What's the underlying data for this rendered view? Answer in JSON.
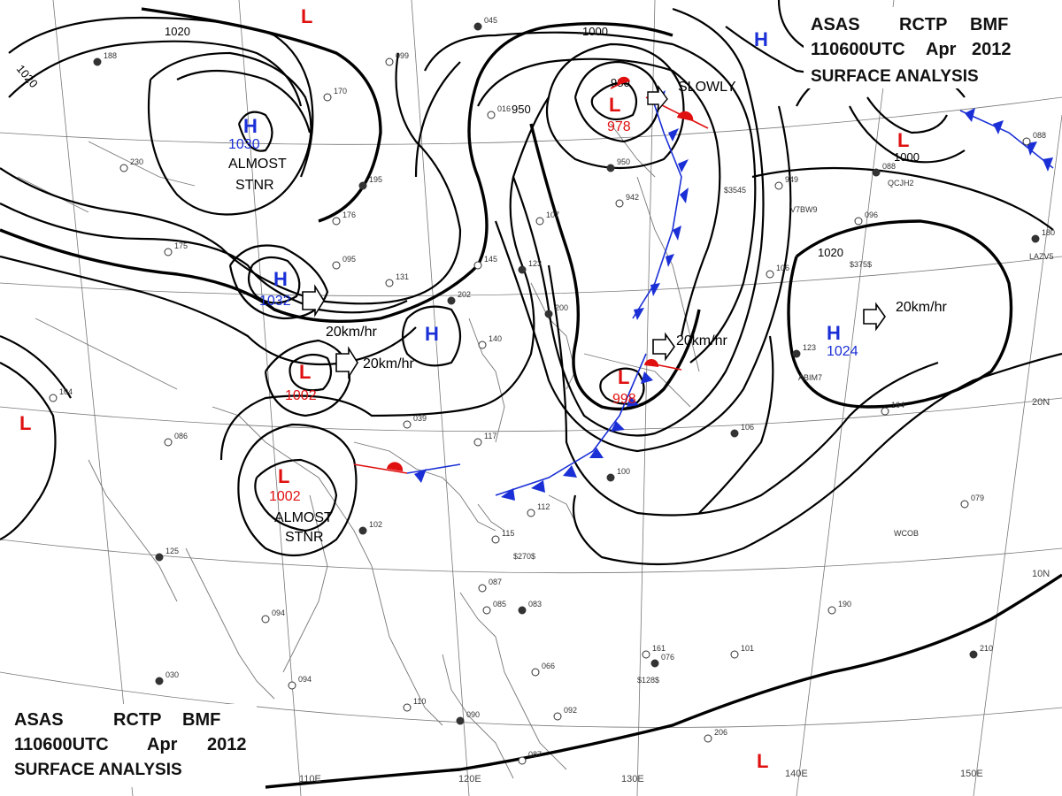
{
  "header_top": {
    "line1": [
      "ASAS",
      "RCTP",
      "BMF"
    ],
    "line2": [
      "110600UTC",
      "Apr",
      "2012"
    ],
    "line3": "SURFACE ANALYSIS"
  },
  "header_bottom": {
    "line1": [
      "ASAS",
      "RCTP",
      "BMF"
    ],
    "line2": [
      "110600UTC",
      "Apr",
      "2012"
    ],
    "line3": "SURFACE ANALYSIS"
  },
  "longitude_labels": [
    "110E",
    "120E",
    "130E",
    "140E",
    "150E"
  ],
  "latitude_labels": [
    "20N",
    "10N"
  ],
  "pressure_centers": [
    {
      "type": "H",
      "value": "1030",
      "note": "ALMOST STNR"
    },
    {
      "type": "H",
      "value": "1032",
      "note": ""
    },
    {
      "type": "H",
      "value": "",
      "note": ""
    },
    {
      "type": "H",
      "value": "",
      "note": ""
    },
    {
      "type": "H",
      "value": "1024",
      "note": ""
    },
    {
      "type": "L",
      "value": "",
      "note": ""
    },
    {
      "type": "L",
      "value": "978",
      "note": "SLOWLY"
    },
    {
      "type": "L",
      "value": "",
      "note": ""
    },
    {
      "type": "L",
      "value": "1002",
      "note": ""
    },
    {
      "type": "L",
      "value": "1002",
      "note": "ALMOST STNR"
    },
    {
      "type": "L",
      "value": "",
      "note": ""
    },
    {
      "type": "L",
      "value": "998",
      "note": ""
    },
    {
      "type": "L",
      "value": "",
      "note": ""
    }
  ],
  "motion_vectors": [
    {
      "label": "20km/hr"
    },
    {
      "label": "20km/hr"
    },
    {
      "label": "20km/hr"
    },
    {
      "label": "20km/hr"
    }
  ],
  "isobar_labels": [
    "1020",
    "1020",
    "1000",
    "980",
    "950",
    "1000",
    "1020"
  ],
  "colors": {
    "high": "#1a2fd6",
    "low": "#e01010",
    "isobar": "#000000",
    "coast_grid": "#777777",
    "cold_front": "#1a2fd6",
    "warm_front": "#e01010"
  },
  "station_plots": [
    "045",
    "099",
    "170",
    "188",
    "230",
    "175",
    "195",
    "176",
    "131",
    "202",
    "140",
    "145",
    "123",
    "107",
    "016",
    "950",
    "942",
    "949",
    "200",
    "039",
    "117",
    "100",
    "112",
    "115",
    "102",
    "094",
    "087",
    "083",
    "085",
    "101",
    "076",
    "066",
    "110",
    "090",
    "092",
    "094",
    "030",
    "086",
    "104",
    "106",
    "095",
    "164",
    "123",
    "206",
    "079",
    "125",
    "106",
    "096",
    "180",
    "161",
    "190",
    "210",
    "087",
    "088",
    "088"
  ],
  "station_ids": [
    "V7BW9",
    "LAZV5",
    "QCJH2",
    "$375$",
    "$3545",
    "$128$",
    "$270$",
    "WCOB",
    "ABIM7"
  ]
}
